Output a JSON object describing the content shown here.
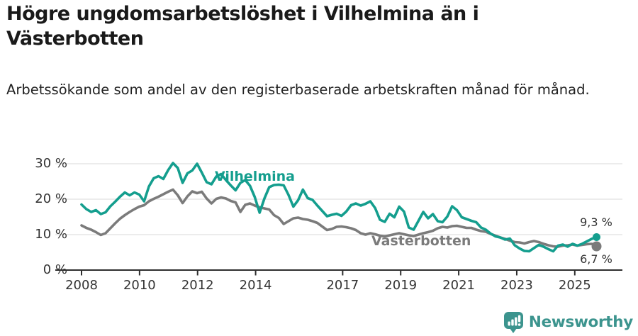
{
  "title": "Högre ungdomsarbetslöshet i Vilhelmina än i Västerbotten",
  "subtitle": "Arbetssökande som andel av den registerbaserade arbetskraften månad för månad.",
  "footer": {
    "brand": "Newsworthy"
  },
  "colors": {
    "vilhelmina": "#149e8e",
    "vasterbotten": "#7b7b7b",
    "brand_teal": "#3c948e",
    "grid": "#e0e0e0",
    "axis": "#2e2e2e",
    "axis_text": "#333333"
  },
  "chart_data": {
    "type": "line",
    "title": "Högre ungdomsarbetslöshet i Vilhelmina än i Västerbotten",
    "subtitle": "Arbetssökande som andel av den registerbaserade arbetskraften månad för månad.",
    "xlabel": "",
    "ylabel": "",
    "grid": "horizontal",
    "legend_position": "inline-labels-on-lines",
    "xlim": [
      2007.1,
      2026.6
    ],
    "ylim": [
      0,
      32
    ],
    "x_ticks": [
      2008,
      2010,
      2012,
      2014,
      2017,
      2019,
      2021,
      2023,
      2025
    ],
    "x_tick_labels": [
      "2008",
      "2010",
      "2012",
      "2014",
      "2017",
      "2019",
      "2021",
      "2023",
      "2025"
    ],
    "y_ticks": [
      0,
      10,
      20,
      30
    ],
    "y_tick_labels": [
      "0 %",
      "10 %",
      "20 %",
      "30 %"
    ],
    "x_unit": "year (monthly data)",
    "y_unit": "percent",
    "x_start": 2008.0,
    "x_step": 0.16589,
    "series": [
      {
        "name": "Vilhelmina",
        "color": "#149e8e",
        "end_value": 9.3,
        "end_label": "9,3 %",
        "values": [
          18.5,
          17.2,
          16.4,
          16.9,
          15.8,
          16.3,
          18.0,
          19.3,
          20.7,
          21.9,
          21.1,
          21.9,
          21.3,
          19.4,
          23.6,
          25.9,
          26.5,
          25.7,
          28.2,
          30.2,
          28.8,
          24.6,
          27.3,
          28.1,
          30.0,
          27.5,
          24.8,
          24.2,
          26.4,
          27.1,
          25.4,
          23.9,
          22.5,
          24.6,
          25.4,
          23.8,
          20.6,
          16.2,
          20.2,
          23.4,
          24.0,
          24.1,
          23.9,
          21.2,
          17.9,
          19.7,
          22.7,
          20.3,
          19.8,
          18.2,
          16.7,
          15.2,
          15.6,
          15.9,
          15.3,
          16.5,
          18.3,
          18.8,
          18.2,
          18.7,
          19.4,
          17.5,
          14.2,
          13.6,
          15.9,
          14.9,
          17.9,
          16.5,
          12.0,
          11.4,
          13.9,
          16.4,
          14.6,
          15.8,
          13.8,
          13.5,
          15.1,
          18.0,
          16.9,
          14.9,
          14.4,
          13.9,
          13.5,
          12.0,
          11.4,
          10.3,
          9.5,
          9.2,
          8.6,
          8.9,
          7.0,
          6.1,
          5.4,
          5.3,
          6.2,
          7.1,
          6.6,
          5.9,
          5.3,
          6.9,
          7.2,
          6.6,
          7.4,
          6.9,
          7.4,
          8.1,
          8.8,
          9.3
        ]
      },
      {
        "name": "Västerbotten",
        "color": "#7b7b7b",
        "end_value": 6.7,
        "end_label": "6,7 %",
        "values": [
          12.6,
          11.9,
          11.4,
          10.7,
          9.9,
          10.4,
          11.8,
          13.2,
          14.5,
          15.5,
          16.4,
          17.2,
          17.9,
          18.3,
          19.4,
          20.1,
          20.7,
          21.4,
          22.1,
          22.7,
          21.1,
          18.9,
          20.8,
          22.2,
          21.7,
          22.1,
          20.2,
          18.8,
          20.1,
          20.5,
          20.2,
          19.5,
          19.1,
          16.4,
          18.4,
          18.8,
          18.2,
          17.7,
          17.4,
          17.1,
          15.5,
          14.7,
          13.0,
          13.8,
          14.6,
          14.8,
          14.4,
          14.2,
          13.8,
          13.3,
          12.3,
          11.3,
          11.6,
          12.2,
          12.3,
          12.1,
          11.8,
          11.3,
          10.4,
          10.0,
          10.4,
          10.1,
          9.7,
          9.5,
          9.8,
          10.1,
          10.4,
          10.1,
          9.8,
          9.6,
          10.0,
          10.4,
          10.7,
          11.1,
          11.8,
          12.2,
          12.0,
          12.4,
          12.5,
          12.2,
          11.9,
          11.9,
          11.4,
          11.0,
          10.8,
          10.2,
          9.7,
          9.2,
          8.8,
          8.3,
          7.9,
          7.8,
          7.5,
          7.9,
          8.2,
          7.9,
          7.4,
          7.0,
          6.7,
          6.6,
          6.9,
          7.0,
          7.2,
          6.9,
          7.1,
          7.3,
          7.4,
          6.7
        ]
      }
    ]
  }
}
